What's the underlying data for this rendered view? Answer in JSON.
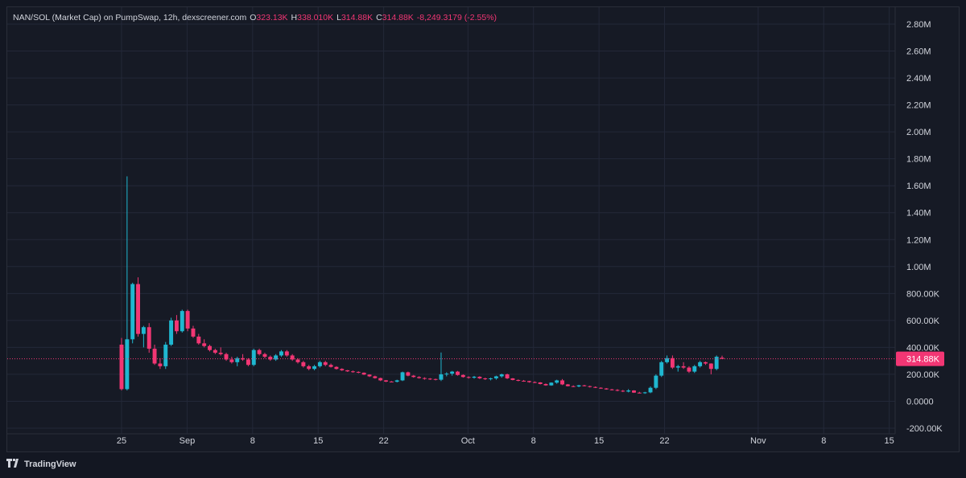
{
  "legend": {
    "symbol": "NAN/SOL (Market Cap) on PumpSwap, 12h, dexscreener.com",
    "o_key": "O",
    "o_val": "323.13K",
    "h_key": "H",
    "h_val": "338.010K",
    "l_key": "L",
    "l_val": "314.88K",
    "c_key": "C",
    "c_val": "314.88K",
    "change": "-8,249.3179 (-2.55%)"
  },
  "footer": {
    "brand": "TradingView"
  },
  "colors": {
    "up": "#22ab94",
    "down": "#f23674",
    "upBody": "#1fb7d0",
    "background": "#161a25",
    "grid": "#232838"
  },
  "chart_data": {
    "type": "candlestick",
    "title": "NAN/SOL (Market Cap) on PumpSwap, 12h, dexscreener.com",
    "x_ticks": [
      "25",
      "Sep",
      "8",
      "15",
      "22",
      "Oct",
      "8",
      "15",
      "22",
      "Nov",
      "8",
      "15"
    ],
    "y_ticks": [
      "2.80M",
      "2.60M",
      "2.40M",
      "2.20M",
      "2.00M",
      "1.80M",
      "1.60M",
      "1.40M",
      "1.20M",
      "1.00M",
      "800.00K",
      "600.00K",
      "400.00K",
      "200.00K",
      "0.0000",
      "-200.00K"
    ],
    "ylim": [
      -200000,
      2800000
    ],
    "last_price": 314880,
    "last_price_label": "314.88K",
    "candles": [
      [
        420000,
        470000,
        80000,
        90000
      ],
      [
        90000,
        1670000,
        80000,
        460000
      ],
      [
        460000,
        880000,
        430000,
        870000
      ],
      [
        870000,
        920000,
        480000,
        500000
      ],
      [
        500000,
        560000,
        400000,
        550000
      ],
      [
        550000,
        580000,
        360000,
        390000
      ],
      [
        390000,
        420000,
        270000,
        280000
      ],
      [
        280000,
        320000,
        240000,
        260000
      ],
      [
        260000,
        440000,
        240000,
        420000
      ],
      [
        420000,
        620000,
        410000,
        600000
      ],
      [
        600000,
        640000,
        500000,
        520000
      ],
      [
        520000,
        680000,
        510000,
        670000
      ],
      [
        670000,
        680000,
        520000,
        540000
      ],
      [
        540000,
        560000,
        470000,
        480000
      ],
      [
        480000,
        500000,
        420000,
        430000
      ],
      [
        430000,
        460000,
        400000,
        410000
      ],
      [
        410000,
        420000,
        370000,
        380000
      ],
      [
        380000,
        390000,
        350000,
        360000
      ],
      [
        360000,
        400000,
        340000,
        350000
      ],
      [
        350000,
        360000,
        300000,
        310000
      ],
      [
        310000,
        330000,
        280000,
        290000
      ],
      [
        290000,
        330000,
        260000,
        320000
      ],
      [
        320000,
        350000,
        300000,
        310000
      ],
      [
        310000,
        320000,
        260000,
        270000
      ],
      [
        270000,
        390000,
        260000,
        380000
      ],
      [
        380000,
        390000,
        340000,
        350000
      ],
      [
        350000,
        360000,
        320000,
        330000
      ],
      [
        330000,
        340000,
        300000,
        310000
      ],
      [
        310000,
        350000,
        300000,
        340000
      ],
      [
        340000,
        380000,
        330000,
        370000
      ],
      [
        370000,
        380000,
        330000,
        340000
      ],
      [
        340000,
        350000,
        300000,
        310000
      ],
      [
        310000,
        320000,
        280000,
        290000
      ],
      [
        290000,
        300000,
        250000,
        260000
      ],
      [
        260000,
        270000,
        230000,
        240000
      ],
      [
        240000,
        270000,
        230000,
        260000
      ],
      [
        260000,
        300000,
        250000,
        290000
      ],
      [
        290000,
        300000,
        260000,
        270000
      ],
      [
        270000,
        280000,
        250000,
        255000
      ],
      [
        255000,
        260000,
        235000,
        240000
      ],
      [
        240000,
        245000,
        225000,
        230000
      ],
      [
        230000,
        232000,
        218000,
        222000
      ],
      [
        222000,
        228000,
        212000,
        218000
      ],
      [
        218000,
        222000,
        208000,
        212000
      ],
      [
        212000,
        214000,
        195000,
        198000
      ],
      [
        198000,
        200000,
        180000,
        185000
      ],
      [
        185000,
        190000,
        168000,
        172000
      ],
      [
        172000,
        175000,
        150000,
        155000
      ],
      [
        155000,
        158000,
        142000,
        146000
      ],
      [
        146000,
        150000,
        140000,
        145000
      ],
      [
        145000,
        160000,
        140000,
        155000
      ],
      [
        155000,
        220000,
        150000,
        215000
      ],
      [
        215000,
        220000,
        185000,
        190000
      ],
      [
        190000,
        195000,
        175000,
        180000
      ],
      [
        180000,
        186000,
        168000,
        172000
      ],
      [
        172000,
        178000,
        160000,
        168000
      ],
      [
        168000,
        172000,
        158000,
        165000
      ],
      [
        165000,
        168000,
        155000,
        160000
      ],
      [
        160000,
        362000,
        150000,
        200000
      ],
      [
        200000,
        215000,
        185000,
        205000
      ],
      [
        205000,
        225000,
        190000,
        220000
      ],
      [
        220000,
        225000,
        190000,
        195000
      ],
      [
        195000,
        200000,
        175000,
        180000
      ],
      [
        180000,
        185000,
        168000,
        175000
      ],
      [
        175000,
        188000,
        168000,
        182000
      ],
      [
        182000,
        186000,
        165000,
        170000
      ],
      [
        170000,
        175000,
        158000,
        165000
      ],
      [
        165000,
        175000,
        155000,
        170000
      ],
      [
        170000,
        190000,
        160000,
        185000
      ],
      [
        185000,
        205000,
        175000,
        200000
      ],
      [
        200000,
        205000,
        165000,
        170000
      ],
      [
        170000,
        172000,
        155000,
        158000
      ],
      [
        158000,
        162000,
        148000,
        152000
      ],
      [
        152000,
        158000,
        145000,
        150000
      ],
      [
        150000,
        152000,
        138000,
        142000
      ],
      [
        142000,
        148000,
        135000,
        140000
      ],
      [
        140000,
        142000,
        125000,
        128000
      ],
      [
        128000,
        132000,
        115000,
        118000
      ],
      [
        118000,
        140000,
        115000,
        138000
      ],
      [
        138000,
        160000,
        130000,
        155000
      ],
      [
        155000,
        165000,
        120000,
        125000
      ],
      [
        125000,
        128000,
        110000,
        112000
      ],
      [
        112000,
        118000,
        105000,
        110000
      ],
      [
        110000,
        122000,
        104000,
        118000
      ],
      [
        118000,
        122000,
        110000,
        112000
      ],
      [
        112000,
        116000,
        102000,
        106000
      ],
      [
        106000,
        110000,
        98000,
        100000
      ],
      [
        100000,
        104000,
        92000,
        95000
      ],
      [
        95000,
        98000,
        86000,
        88000
      ],
      [
        88000,
        92000,
        80000,
        84000
      ],
      [
        84000,
        90000,
        74000,
        78000
      ],
      [
        78000,
        84000,
        68000,
        72000
      ],
      [
        72000,
        90000,
        66000,
        80000
      ],
      [
        80000,
        82000,
        62000,
        64000
      ],
      [
        64000,
        70000,
        58000,
        62000
      ],
      [
        62000,
        70000,
        55000,
        66000
      ],
      [
        66000,
        110000,
        60000,
        100000
      ],
      [
        100000,
        200000,
        90000,
        190000
      ],
      [
        190000,
        300000,
        180000,
        290000
      ],
      [
        290000,
        340000,
        280000,
        320000
      ],
      [
        320000,
        340000,
        240000,
        250000
      ],
      [
        250000,
        270000,
        220000,
        260000
      ],
      [
        260000,
        290000,
        240000,
        250000
      ],
      [
        250000,
        260000,
        210000,
        220000
      ],
      [
        220000,
        270000,
        210000,
        260000
      ],
      [
        260000,
        300000,
        250000,
        290000
      ],
      [
        290000,
        295000,
        270000,
        280000
      ],
      [
        280000,
        282000,
        200000,
        240000
      ],
      [
        240000,
        340000,
        230000,
        330000
      ],
      [
        323130,
        338010,
        314880,
        314880
      ]
    ],
    "x_range_days": [
      0,
      80.5
    ]
  }
}
